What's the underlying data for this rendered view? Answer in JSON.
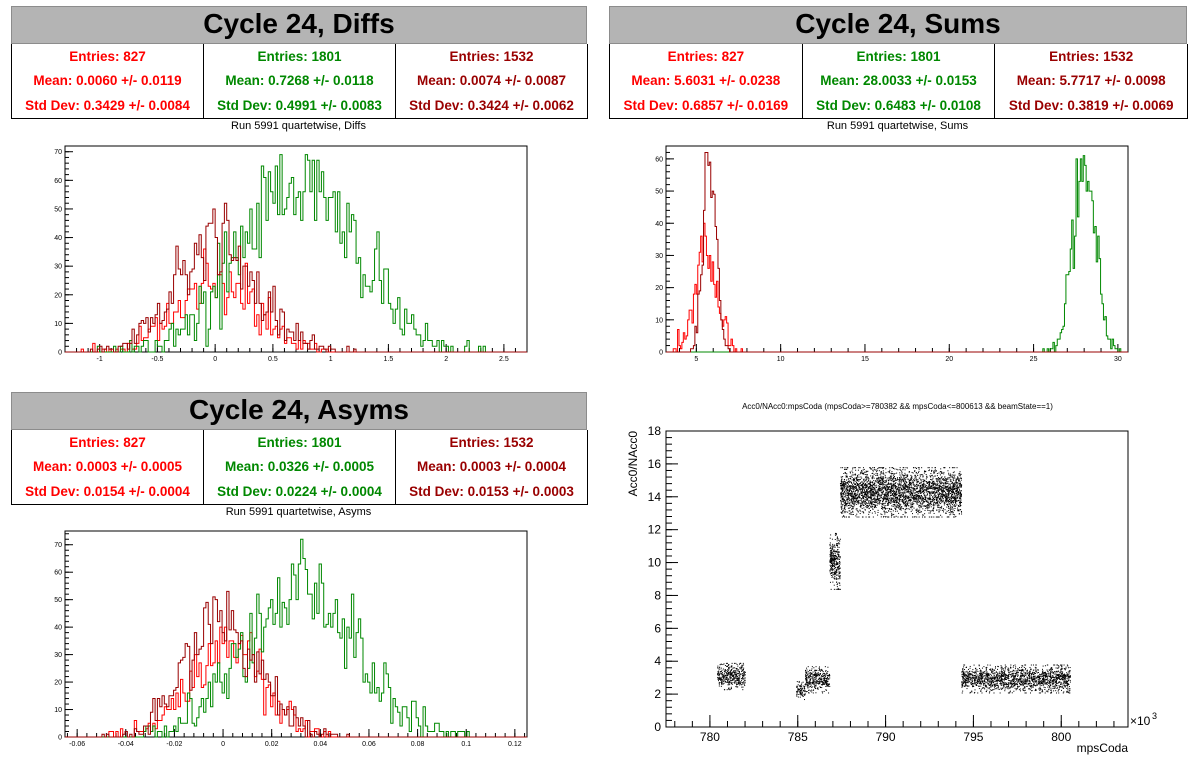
{
  "colors": {
    "s1": "#ff0000",
    "s2": "#008800",
    "s3": "#990000"
  },
  "panels": [
    {
      "id": "diffs",
      "title": "Cycle 24, Diffs",
      "subtitle": "Run 5991 quartetwise, Diffs",
      "stats": [
        {
          "entries": "Entries: 827",
          "mean": "Mean: 0.0060 +/- 0.0119",
          "std": "Std Dev: 0.3429 +/- 0.0084"
        },
        {
          "entries": "Entries: 1801",
          "mean": "Mean: 0.7268 +/- 0.0118",
          "std": "Std Dev: 0.4991 +/- 0.0083"
        },
        {
          "entries": "Entries: 1532",
          "mean": "Mean: 0.0074 +/- 0.0087",
          "std": "Std Dev: 0.3424 +/- 0.0062"
        }
      ]
    },
    {
      "id": "sums",
      "title": "Cycle 24, Sums",
      "subtitle": "Run 5991 quartetwise, Sums",
      "stats": [
        {
          "entries": "Entries: 827",
          "mean": "Mean: 5.6031 +/- 0.0238",
          "std": "Std Dev: 0.6857 +/- 0.0169"
        },
        {
          "entries": "Entries: 1801",
          "mean": "Mean: 28.0033 +/- 0.0153",
          "std": "Std Dev: 0.6483 +/- 0.0108"
        },
        {
          "entries": "Entries: 1532",
          "mean": "Mean: 5.7717 +/- 0.0098",
          "std": "Std Dev: 0.3819 +/- 0.0069"
        }
      ]
    },
    {
      "id": "asyms",
      "title": "Cycle 24, Asyms",
      "subtitle": "Run 5991 quartetwise, Asyms",
      "stats": [
        {
          "entries": "Entries: 827",
          "mean": "Mean: 0.0003 +/- 0.0005",
          "std": "Std Dev: 0.0154 +/- 0.0004"
        },
        {
          "entries": "Entries: 1801",
          "mean": "Mean: 0.0326 +/- 0.0005",
          "std": "Std Dev: 0.0224 +/- 0.0004"
        },
        {
          "entries": "Entries: 1532",
          "mean": "Mean: 0.0003 +/- 0.0004",
          "std": "Std Dev: 0.0153 +/- 0.0003"
        }
      ]
    }
  ],
  "chart_data": [
    {
      "type": "histogram",
      "panel": "diffs",
      "xlim": [
        -1.3,
        2.7
      ],
      "ylim": [
        0,
        72
      ],
      "xticks": [
        "-1",
        "-0.5",
        "0",
        "0.5",
        "1",
        "1.5",
        "2",
        "2.5"
      ],
      "yticks": [
        "0",
        "10",
        "20",
        "30",
        "40",
        "50",
        "60",
        "70"
      ],
      "series": [
        {
          "entries": 827,
          "mean": 0.006,
          "std": 0.3429,
          "peak": 36,
          "color_key": "s1"
        },
        {
          "entries": 1801,
          "mean": 0.7268,
          "std": 0.4991,
          "peak": 69,
          "color_key": "s2"
        },
        {
          "entries": 1532,
          "mean": 0.0074,
          "std": 0.3424,
          "peak": 52,
          "color_key": "s3"
        }
      ]
    },
    {
      "type": "histogram",
      "panel": "sums",
      "xlim": [
        3.2,
        30.6
      ],
      "ylim": [
        0,
        64
      ],
      "xticks": [
        "5",
        "10",
        "15",
        "20",
        "25",
        "30"
      ],
      "yticks": [
        "0",
        "10",
        "20",
        "30",
        "40",
        "50",
        "60"
      ],
      "series": [
        {
          "entries": 827,
          "mean": 5.6031,
          "std": 0.6857,
          "peak": 40,
          "color_key": "s1"
        },
        {
          "entries": 1801,
          "mean": 28.0033,
          "std": 0.6483,
          "peak": 61,
          "color_key": "s2"
        },
        {
          "entries": 1532,
          "mean": 5.7717,
          "std": 0.3819,
          "peak": 62,
          "color_key": "s3"
        }
      ]
    },
    {
      "type": "histogram",
      "panel": "asyms",
      "xlim": [
        -0.065,
        0.125
      ],
      "ylim": [
        0,
        75
      ],
      "xticks": [
        "-0.06",
        "-0.04",
        "-0.02",
        "0",
        "0.02",
        "0.04",
        "0.06",
        "0.08",
        "0.1",
        "0.12"
      ],
      "yticks": [
        "0",
        "10",
        "20",
        "30",
        "40",
        "50",
        "60",
        "70"
      ],
      "series": [
        {
          "entries": 827,
          "mean": 0.0003,
          "std": 0.0154,
          "peak": 40,
          "color_key": "s1"
        },
        {
          "entries": 1801,
          "mean": 0.0326,
          "std": 0.0224,
          "peak": 72,
          "color_key": "s2"
        },
        {
          "entries": 1532,
          "mean": 0.0003,
          "std": 0.0153,
          "peak": 53,
          "color_key": "s3"
        }
      ]
    },
    {
      "type": "scatter",
      "panel": "scatter",
      "title": "Acc0/NAcc0:mpsCoda (mpsCoda>=780382 && mpsCoda<=800613 && beamState==1)",
      "xlabel": "mpsCoda",
      "ylabel": "Acc0/NAcc0",
      "xexp": "×10",
      "xexp_sup": "3",
      "xlim": [
        777.5,
        803.8
      ],
      "ylim": [
        0,
        18
      ],
      "xticks": [
        "780",
        "785",
        "790",
        "795",
        "800"
      ],
      "yticks": [
        "0",
        "2",
        "4",
        "6",
        "8",
        "10",
        "12",
        "14",
        "16",
        "18"
      ],
      "clusters": [
        {
          "x": [
            780.4,
            782.0
          ],
          "y": [
            2.3,
            3.9
          ]
        },
        {
          "x": [
            784.9,
            785.4
          ],
          "y": [
            1.7,
            2.8
          ]
        },
        {
          "x": [
            785.4,
            786.8
          ],
          "y": [
            2.1,
            3.7
          ]
        },
        {
          "x": [
            786.8,
            787.4
          ],
          "y": [
            8.4,
            11.8
          ]
        },
        {
          "x": [
            787.4,
            794.3
          ],
          "y": [
            12.8,
            15.8
          ]
        },
        {
          "x": [
            794.3,
            800.5
          ],
          "y": [
            2.1,
            3.8
          ]
        }
      ]
    }
  ]
}
